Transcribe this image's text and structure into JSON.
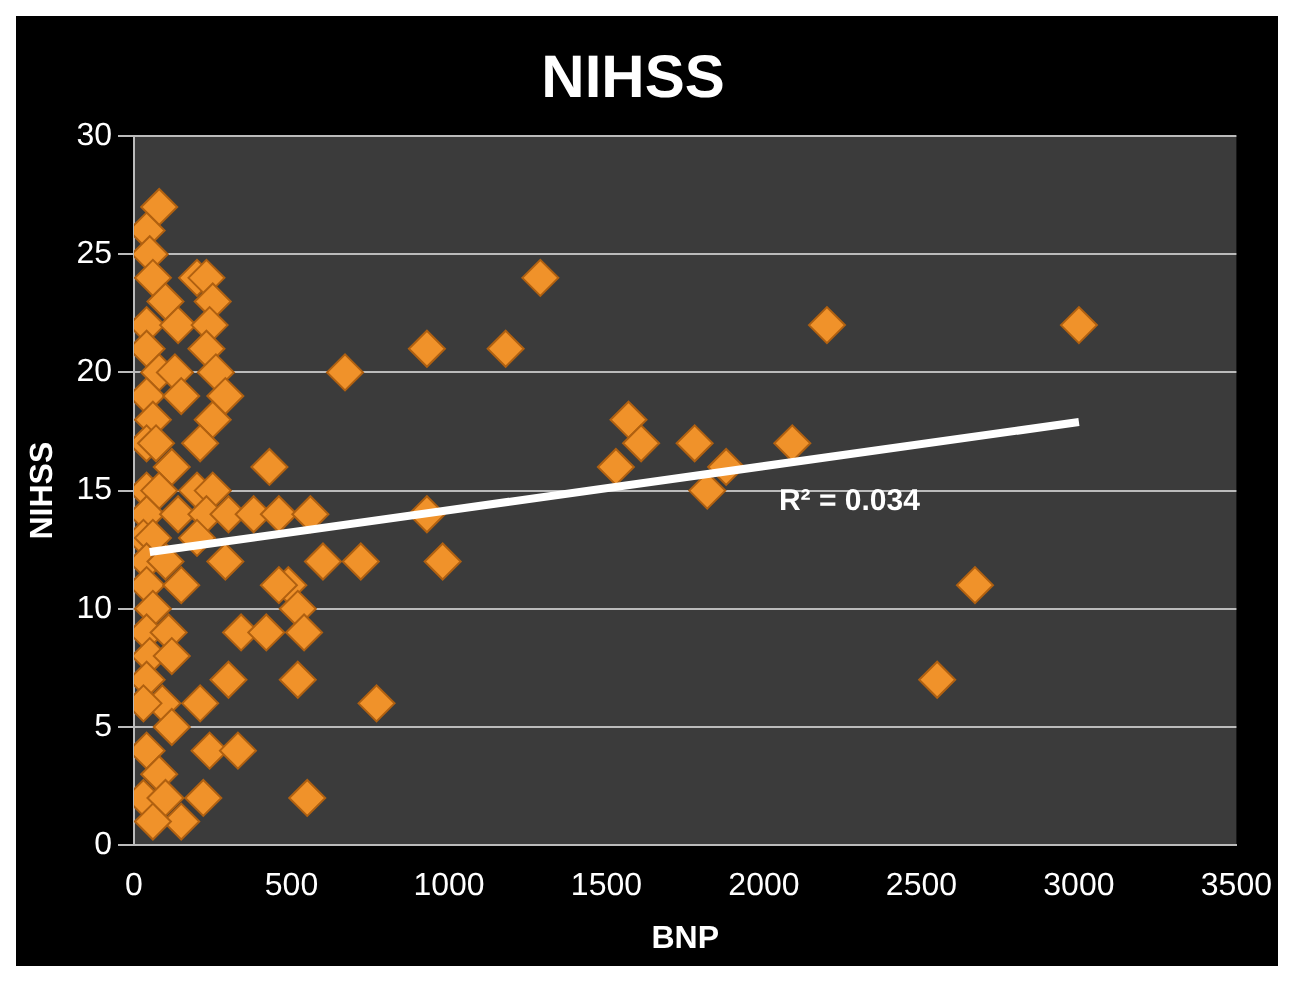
{
  "chart_data": {
    "type": "scatter",
    "title": "NIHSS",
    "xlabel": "BNP",
    "ylabel": "NIHSS",
    "xlim": [
      0,
      3500
    ],
    "xticks": [
      0,
      500,
      1000,
      1500,
      2000,
      2500,
      3000,
      3500
    ],
    "ylim": [
      0,
      30
    ],
    "yticks": [
      0,
      5,
      10,
      15,
      20,
      25,
      30
    ],
    "grid": "y",
    "legend": false,
    "marker": "diamond",
    "series": [
      {
        "type": "scatter",
        "color": "#f0922a",
        "x": [
          80,
          40,
          50,
          60,
          100,
          40,
          140,
          40,
          80,
          130,
          40,
          150,
          60,
          40,
          70,
          120,
          40,
          80,
          40,
          140,
          30,
          60,
          40,
          100,
          40,
          150,
          60,
          40,
          110,
          50,
          120,
          40,
          90,
          30,
          120,
          40,
          80,
          30,
          100,
          150,
          60,
          200,
          230,
          250,
          240,
          230,
          260,
          290,
          250,
          210,
          200,
          250,
          230,
          300,
          200,
          290,
          340,
          300,
          210,
          240,
          330,
          220,
          430,
          380,
          460,
          420,
          490,
          520,
          540,
          520,
          560,
          550,
          460,
          600,
          670,
          720,
          770,
          930,
          930,
          980,
          1180,
          1290,
          1530,
          1570,
          1610,
          1780,
          1820,
          1880,
          2090,
          2200,
          2550,
          2670,
          3000
        ],
        "values": [
          27,
          26,
          25,
          24,
          23,
          22,
          22,
          21,
          20,
          20,
          19,
          19,
          18,
          17,
          17,
          16,
          15,
          15,
          14,
          14,
          13,
          13,
          12,
          12,
          11,
          11,
          10,
          9,
          9,
          8,
          8,
          7,
          6,
          6,
          5,
          4,
          3,
          2,
          2,
          1,
          1,
          24,
          24,
          23,
          22,
          21,
          20,
          19,
          18,
          17,
          15,
          15,
          14,
          14,
          13,
          12,
          9,
          7,
          6,
          4,
          4,
          2,
          16,
          14,
          14,
          9,
          11,
          10,
          9,
          7,
          14,
          2,
          11,
          12,
          20,
          12,
          6,
          21,
          14,
          12,
          21,
          24,
          16,
          18,
          17,
          17,
          15,
          16,
          17,
          22,
          7,
          11,
          22
        ]
      },
      {
        "type": "line",
        "color": "#ffffff",
        "marker": "none",
        "x": [
          50,
          3000
        ],
        "values": [
          12.4,
          17.9
        ]
      }
    ],
    "annotations": [
      "R² = 0.034"
    ]
  }
}
